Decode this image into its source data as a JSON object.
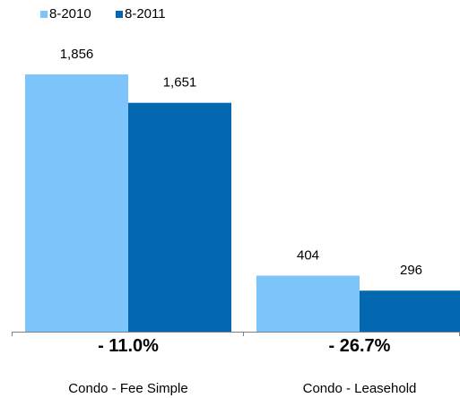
{
  "chart_data": {
    "type": "bar",
    "categories": [
      "Condo - Fee Simple",
      "Condo - Leasehold"
    ],
    "series": [
      {
        "name": "8-2010",
        "values": [
          1856,
          404
        ],
        "value_labels": [
          "1,856",
          "404"
        ],
        "color": "#7cc4fa"
      },
      {
        "name": "8-2011",
        "values": [
          1651,
          296
        ],
        "value_labels": [
          "1,651",
          "296"
        ],
        "color": "#0468b1"
      }
    ],
    "changes": [
      "- 11.0%",
      "- 26.7%"
    ],
    "ylim": [
      0,
      1856
    ],
    "legend": "top-left",
    "grid": false
  }
}
